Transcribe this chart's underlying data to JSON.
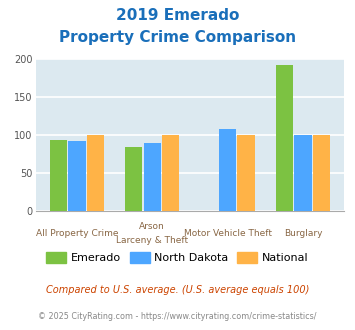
{
  "title_line1": "2019 Emerado",
  "title_line2": "Property Crime Comparison",
  "title_color": "#1a6fba",
  "cat_labels_top": [
    "",
    "Arson",
    "Motor Vehicle Theft",
    ""
  ],
  "cat_labels_bot": [
    "All Property Crime",
    "Larceny & Theft",
    "",
    "Burglary"
  ],
  "emerado": [
    94,
    85,
    0,
    193
  ],
  "north_dakota": [
    93,
    90,
    108,
    100
  ],
  "national": [
    100,
    100,
    100,
    100
  ],
  "emerado_color": "#7cc242",
  "nd_color": "#4da6ff",
  "national_color": "#ffb347",
  "ylim": [
    0,
    200
  ],
  "yticks": [
    0,
    50,
    100,
    150,
    200
  ],
  "bg_color": "#dce9f0",
  "grid_color": "#ffffff",
  "legend_labels": [
    "Emerado",
    "North Dakota",
    "National"
  ],
  "footnote1": "Compared to U.S. average. (U.S. average equals 100)",
  "footnote2": "© 2025 CityRating.com - https://www.cityrating.com/crime-statistics/",
  "footnote1_color": "#cc4400",
  "footnote2_color": "#888888",
  "label_color": "#886644"
}
